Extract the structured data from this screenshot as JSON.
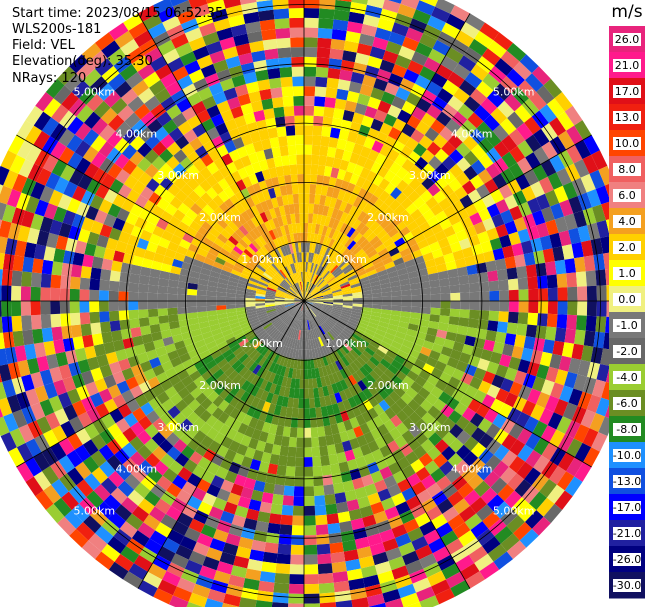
{
  "header": {
    "start_time": "Start time: 2023/08/15 06:52:35",
    "instrument": "WLS200s-181",
    "field": "Field: VEL",
    "elevation": "Elevation(deg): 35.30",
    "nrays": "NRays: 120"
  },
  "chart_data": {
    "type": "heatmap",
    "projection": "polar-ppi",
    "field": "VEL",
    "units": "m/s",
    "elevation_deg": 35.3,
    "nrays": 120,
    "range_rings_km": [
      1.0,
      2.0,
      3.0,
      4.0,
      5.0
    ],
    "ring_labels": [
      "1.00km",
      "2.00km",
      "3.00km",
      "4.00km",
      "5.00km"
    ],
    "max_range_km": 5.6,
    "colorbar": {
      "title": "m/s",
      "tick_labels": [
        "26.0",
        "21.0",
        "17.0",
        "13.0",
        "10.0",
        "8.0",
        "6.0",
        "4.0",
        "2.0",
        "1.0",
        "0.0",
        "-1.0",
        "-2.0",
        "-4.0",
        "-6.0",
        "-8.0",
        "-10.0",
        "-13.0",
        "-17.0",
        "-21.0",
        "-26.0",
        "-30.0"
      ],
      "colors": [
        "#e8247c",
        "#ff1a8c",
        "#e01018",
        "#f02010",
        "#ff4500",
        "#f06060",
        "#f08080",
        "#f4a020",
        "#ffd000",
        "#ffff00",
        "#f0f080",
        "#787878",
        "#686868",
        "#9acd32",
        "#6b8e23",
        "#228b22",
        "#1e90ff",
        "#1050e0",
        "#0000ff",
        "#2020a0",
        "#000080",
        "#101060"
      ]
    },
    "sectors": [
      {
        "region": "inner-north",
        "velocity_range": [
          1.0,
          6.0
        ],
        "description_color": "#ffd000"
      },
      {
        "region": "inner-south",
        "velocity_range": [
          -6.0,
          -1.0
        ],
        "description_color": "#6b8e23"
      },
      {
        "region": "inner-transition",
        "velocity_range": [
          -1.0,
          1.0
        ],
        "description_color": "#787878"
      }
    ]
  }
}
